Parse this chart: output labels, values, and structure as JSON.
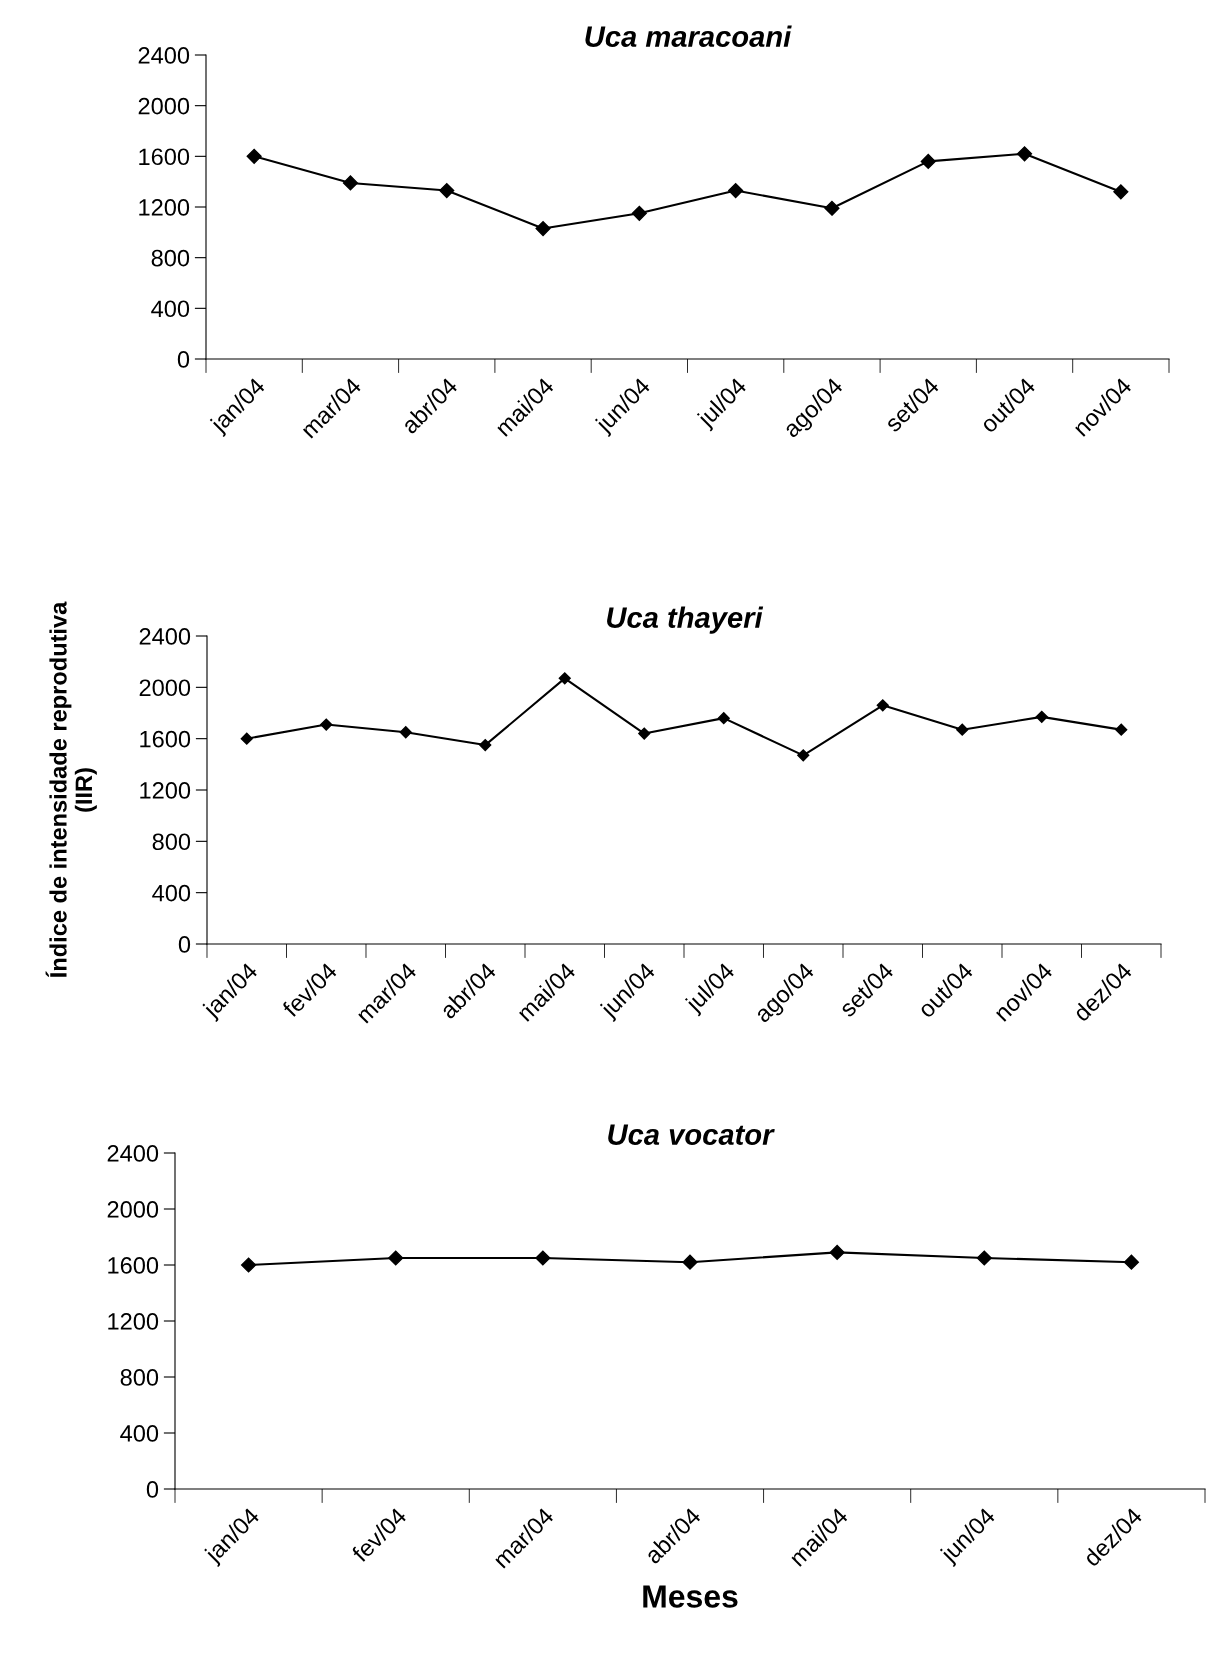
{
  "chart_data": [
    {
      "type": "line",
      "title": "Uca maracoani",
      "categories": [
        "jan/04",
        "mar/04",
        "abr/04",
        "mai/04",
        "jun/04",
        "jul/04",
        "ago/04",
        "set/04",
        "out/04",
        "nov/04"
      ],
      "series": [
        {
          "color": "#000000",
          "values": [
            1600,
            1390,
            1330,
            1030,
            1150,
            1330,
            1190,
            1560,
            1620,
            1320
          ]
        }
      ],
      "ylim": [
        0,
        2400
      ],
      "yticks": [
        0,
        400,
        800,
        1200,
        1600,
        2000,
        2400
      ],
      "grid": false,
      "legend": false,
      "marker": "diamond",
      "line_style": "solid"
    },
    {
      "type": "line",
      "title": "Uca thayeri",
      "ylabel": "Índice de intensidade reprodutiva\n(IIR)",
      "categories": [
        "jan/04",
        "fev/04",
        "mar/04",
        "abr/04",
        "mai/04",
        "jun/04",
        "jul/04",
        "ago/04",
        "set/04",
        "out/04",
        "nov/04",
        "dez/04"
      ],
      "series": [
        {
          "color": "#000000",
          "values": [
            1600,
            1710,
            1650,
            1550,
            2070,
            1640,
            1760,
            1470,
            1860,
            1670,
            1770,
            1670
          ]
        }
      ],
      "ylim": [
        0,
        2400
      ],
      "yticks": [
        0,
        400,
        800,
        1200,
        1600,
        2000,
        2400
      ],
      "grid": false,
      "legend": false,
      "marker": "diamond",
      "line_style": "solid"
    },
    {
      "type": "line",
      "title": "Uca vocator",
      "xlabel": "Meses",
      "categories": [
        "jan/04",
        "fev/04",
        "mar/04",
        "abr/04",
        "mai/04",
        "jun/04",
        "dez/04"
      ],
      "series": [
        {
          "color": "#000000",
          "values": [
            1600,
            1650,
            1650,
            1620,
            1690,
            1650,
            1620
          ]
        }
      ],
      "ylim": [
        0,
        2400
      ],
      "yticks": [
        0,
        400,
        800,
        1200,
        1600,
        2000,
        2400
      ],
      "grid": false,
      "legend": false,
      "marker": "diamond",
      "line_style": "solid"
    }
  ]
}
